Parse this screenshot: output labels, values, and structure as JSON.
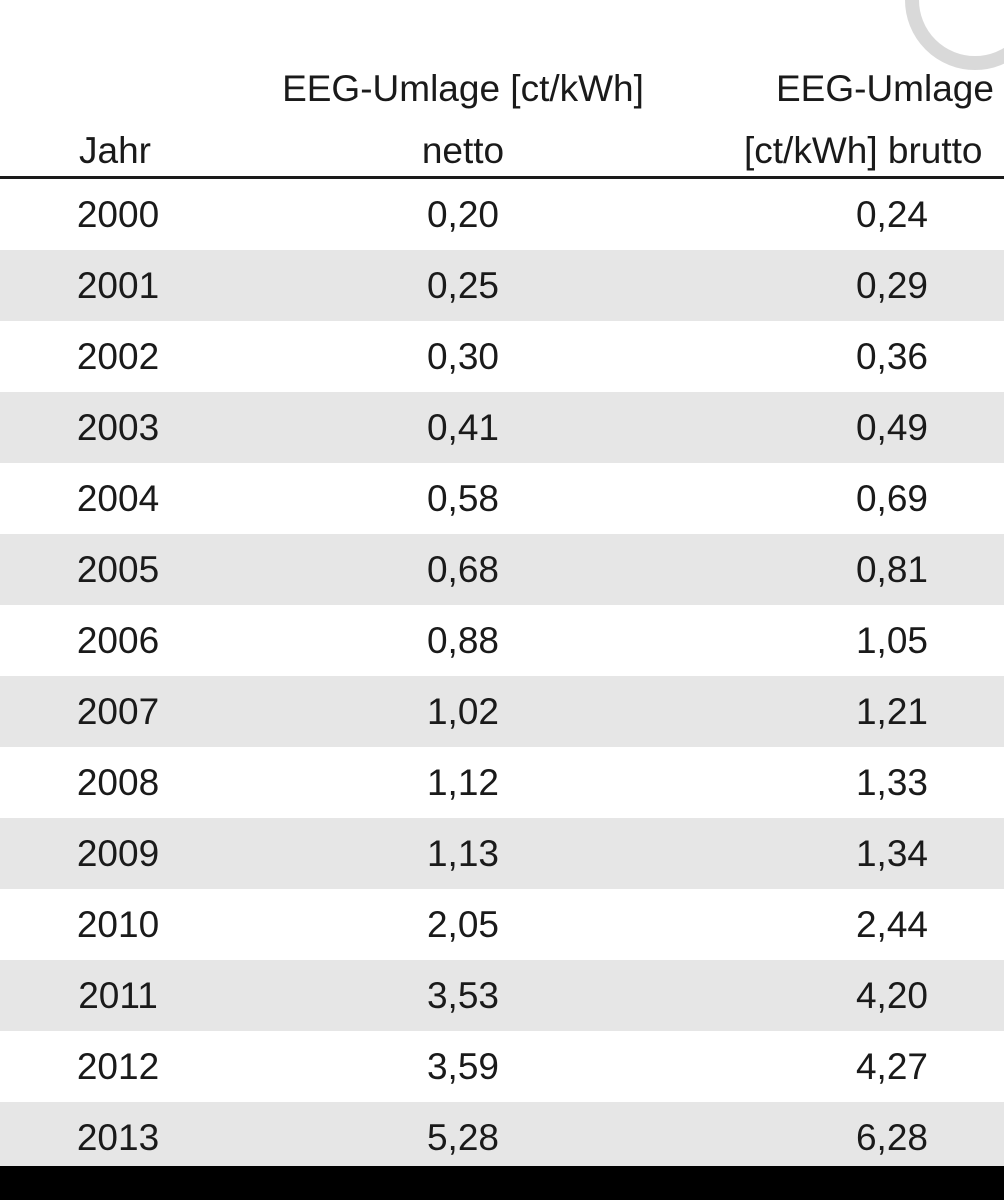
{
  "table": {
    "headers": {
      "jahr": "Jahr",
      "netto_line1": "EEG-Umlage [ct/kWh]",
      "netto_line2": "netto",
      "brutto_line1": "EEG-Umlage",
      "brutto_line2": "[ct/kWh] brutto"
    },
    "rows": [
      {
        "jahr": "2000",
        "netto": "0,20",
        "brutto": "0,24"
      },
      {
        "jahr": "2001",
        "netto": "0,25",
        "brutto": "0,29"
      },
      {
        "jahr": "2002",
        "netto": "0,30",
        "brutto": "0,36"
      },
      {
        "jahr": "2003",
        "netto": "0,41",
        "brutto": "0,49"
      },
      {
        "jahr": "2004",
        "netto": "0,58",
        "brutto": "0,69"
      },
      {
        "jahr": "2005",
        "netto": "0,68",
        "brutto": "0,81"
      },
      {
        "jahr": "2006",
        "netto": "0,88",
        "brutto": "1,05"
      },
      {
        "jahr": "2007",
        "netto": "1,02",
        "brutto": "1,21"
      },
      {
        "jahr": "2008",
        "netto": "1,12",
        "brutto": "1,33"
      },
      {
        "jahr": "2009",
        "netto": "1,13",
        "brutto": "1,34"
      },
      {
        "jahr": "2010",
        "netto": "2,05",
        "brutto": "2,44"
      },
      {
        "jahr": "2011",
        "netto": "3,53",
        "brutto": "4,20"
      },
      {
        "jahr": "2012",
        "netto": "3,59",
        "brutto": "4,27"
      },
      {
        "jahr": "2013",
        "netto": "5,28",
        "brutto": "6,28"
      }
    ]
  }
}
